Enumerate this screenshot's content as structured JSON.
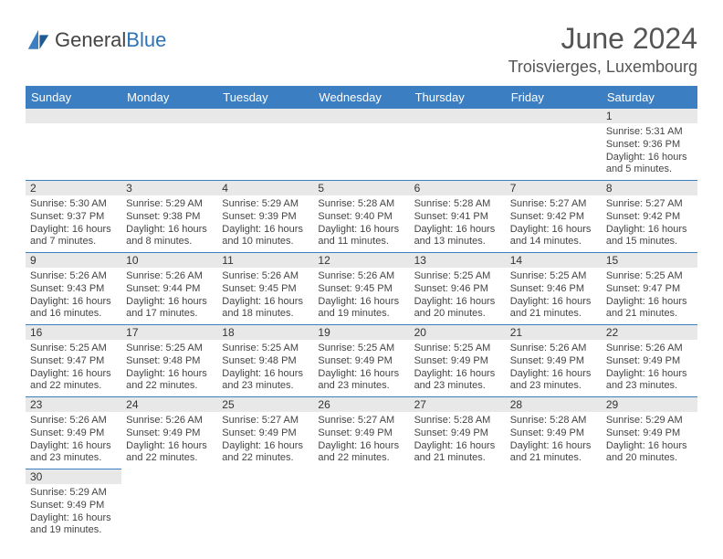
{
  "logo": {
    "text_a": "General",
    "text_b": "Blue"
  },
  "title": "June 2024",
  "location": "Troisvierges, Luxembourg",
  "weekdays": [
    "Sunday",
    "Monday",
    "Tuesday",
    "Wednesday",
    "Thursday",
    "Friday",
    "Saturday"
  ],
  "colors": {
    "header_bg": "#3b7ec1",
    "header_text": "#ffffff",
    "daynum_bg": "#e8e8e8",
    "row_border": "#3b7ec1",
    "logo_blue": "#2d73b8"
  },
  "grid": [
    [
      null,
      null,
      null,
      null,
      null,
      null,
      {
        "n": "1",
        "sr": "5:31 AM",
        "ss": "9:36 PM",
        "dl": "16 hours and 5 minutes."
      }
    ],
    [
      {
        "n": "2",
        "sr": "5:30 AM",
        "ss": "9:37 PM",
        "dl": "16 hours and 7 minutes."
      },
      {
        "n": "3",
        "sr": "5:29 AM",
        "ss": "9:38 PM",
        "dl": "16 hours and 8 minutes."
      },
      {
        "n": "4",
        "sr": "5:29 AM",
        "ss": "9:39 PM",
        "dl": "16 hours and 10 minutes."
      },
      {
        "n": "5",
        "sr": "5:28 AM",
        "ss": "9:40 PM",
        "dl": "16 hours and 11 minutes."
      },
      {
        "n": "6",
        "sr": "5:28 AM",
        "ss": "9:41 PM",
        "dl": "16 hours and 13 minutes."
      },
      {
        "n": "7",
        "sr": "5:27 AM",
        "ss": "9:42 PM",
        "dl": "16 hours and 14 minutes."
      },
      {
        "n": "8",
        "sr": "5:27 AM",
        "ss": "9:42 PM",
        "dl": "16 hours and 15 minutes."
      }
    ],
    [
      {
        "n": "9",
        "sr": "5:26 AM",
        "ss": "9:43 PM",
        "dl": "16 hours and 16 minutes."
      },
      {
        "n": "10",
        "sr": "5:26 AM",
        "ss": "9:44 PM",
        "dl": "16 hours and 17 minutes."
      },
      {
        "n": "11",
        "sr": "5:26 AM",
        "ss": "9:45 PM",
        "dl": "16 hours and 18 minutes."
      },
      {
        "n": "12",
        "sr": "5:26 AM",
        "ss": "9:45 PM",
        "dl": "16 hours and 19 minutes."
      },
      {
        "n": "13",
        "sr": "5:25 AM",
        "ss": "9:46 PM",
        "dl": "16 hours and 20 minutes."
      },
      {
        "n": "14",
        "sr": "5:25 AM",
        "ss": "9:46 PM",
        "dl": "16 hours and 21 minutes."
      },
      {
        "n": "15",
        "sr": "5:25 AM",
        "ss": "9:47 PM",
        "dl": "16 hours and 21 minutes."
      }
    ],
    [
      {
        "n": "16",
        "sr": "5:25 AM",
        "ss": "9:47 PM",
        "dl": "16 hours and 22 minutes."
      },
      {
        "n": "17",
        "sr": "5:25 AM",
        "ss": "9:48 PM",
        "dl": "16 hours and 22 minutes."
      },
      {
        "n": "18",
        "sr": "5:25 AM",
        "ss": "9:48 PM",
        "dl": "16 hours and 23 minutes."
      },
      {
        "n": "19",
        "sr": "5:25 AM",
        "ss": "9:49 PM",
        "dl": "16 hours and 23 minutes."
      },
      {
        "n": "20",
        "sr": "5:25 AM",
        "ss": "9:49 PM",
        "dl": "16 hours and 23 minutes."
      },
      {
        "n": "21",
        "sr": "5:26 AM",
        "ss": "9:49 PM",
        "dl": "16 hours and 23 minutes."
      },
      {
        "n": "22",
        "sr": "5:26 AM",
        "ss": "9:49 PM",
        "dl": "16 hours and 23 minutes."
      }
    ],
    [
      {
        "n": "23",
        "sr": "5:26 AM",
        "ss": "9:49 PM",
        "dl": "16 hours and 23 minutes."
      },
      {
        "n": "24",
        "sr": "5:26 AM",
        "ss": "9:49 PM",
        "dl": "16 hours and 22 minutes."
      },
      {
        "n": "25",
        "sr": "5:27 AM",
        "ss": "9:49 PM",
        "dl": "16 hours and 22 minutes."
      },
      {
        "n": "26",
        "sr": "5:27 AM",
        "ss": "9:49 PM",
        "dl": "16 hours and 22 minutes."
      },
      {
        "n": "27",
        "sr": "5:28 AM",
        "ss": "9:49 PM",
        "dl": "16 hours and 21 minutes."
      },
      {
        "n": "28",
        "sr": "5:28 AM",
        "ss": "9:49 PM",
        "dl": "16 hours and 21 minutes."
      },
      {
        "n": "29",
        "sr": "5:29 AM",
        "ss": "9:49 PM",
        "dl": "16 hours and 20 minutes."
      }
    ],
    [
      {
        "n": "30",
        "sr": "5:29 AM",
        "ss": "9:49 PM",
        "dl": "16 hours and 19 minutes."
      },
      null,
      null,
      null,
      null,
      null,
      null
    ]
  ],
  "labels": {
    "sunrise": "Sunrise:",
    "sunset": "Sunset:",
    "daylight": "Daylight:"
  }
}
